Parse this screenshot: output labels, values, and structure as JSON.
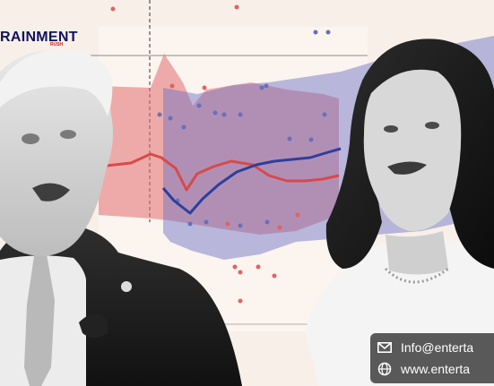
{
  "brand": {
    "name": "RAINMENT",
    "tagline": "RUSH"
  },
  "contact": {
    "email": "Info@enterta",
    "website": "www.enterta"
  },
  "icons": {
    "email": "envelope-icon",
    "website": "globe-icon"
  },
  "colors": {
    "background": "#f8efe9",
    "red_series": "#d84a4a",
    "blue_series": "#2d3f9b",
    "contact_bg": "#3a3a3a"
  }
}
